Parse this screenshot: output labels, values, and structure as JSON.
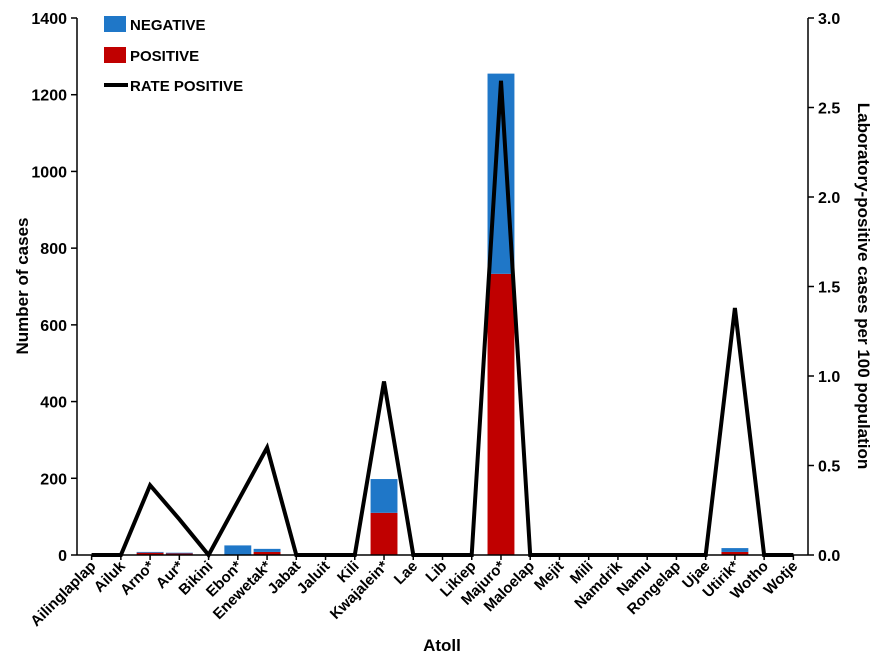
{
  "chart_data": {
    "type": "bar",
    "title": "",
    "xlabel": "Atoll",
    "ylabel": "Number of cases",
    "y2label": "Laboratory-positive cases per 100 population",
    "ylim": [
      0,
      1400
    ],
    "yticks": [
      "0",
      "200",
      "400",
      "600",
      "800",
      "1000",
      "1200",
      "1400"
    ],
    "y2lim": [
      0,
      3.0
    ],
    "y2ticks": [
      "0.0",
      "0.5",
      "1.0",
      "1.5",
      "2.0",
      "2.5",
      "3.0"
    ],
    "grid": false,
    "legend_position": "top-left",
    "categories": [
      "Ailinglaplap",
      "Ailuk",
      "Arno*",
      "Aur*",
      "Bikini",
      "Ebon*",
      "Enewetak*",
      "Jabat",
      "Jaluit",
      "Kili",
      "Kwajalein*",
      "Lae",
      "Lib",
      "Likiep",
      "Majuro*",
      "Maloelap",
      "Mejit",
      "Mili",
      "Namdrik",
      "Namu",
      "Rongelap",
      "Ujae",
      "Utirik*",
      "Wotho",
      "Wotje"
    ],
    "series": [
      {
        "name": "NEGATIVE",
        "kind": "stacked-bar",
        "color": "#1f77c8",
        "values": [
          0,
          0,
          2,
          2,
          0,
          25,
          8,
          0,
          0,
          0,
          88,
          0,
          0,
          0,
          522,
          0,
          0,
          0,
          0,
          0,
          0,
          0,
          10,
          0,
          0
        ]
      },
      {
        "name": "POSITIVE",
        "kind": "stacked-bar",
        "color": "#c00000",
        "values": [
          0,
          0,
          6,
          4,
          0,
          0,
          8,
          0,
          0,
          0,
          110,
          0,
          0,
          0,
          733,
          0,
          0,
          0,
          0,
          0,
          0,
          0,
          8,
          0,
          0
        ]
      },
      {
        "name": "RATE POSITIVE",
        "kind": "line",
        "axis": "y2",
        "color": "#000000",
        "values": [
          0,
          0,
          0.39,
          0.2,
          0,
          0.3,
          0.6,
          0,
          0,
          0,
          0.97,
          0,
          0,
          0,
          2.65,
          0,
          0,
          0,
          0,
          0,
          0,
          0,
          1.38,
          0,
          0
        ]
      }
    ]
  }
}
